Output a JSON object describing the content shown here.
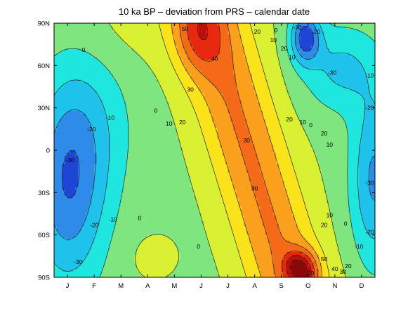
{
  "chart_data": {
    "type": "heatmap",
    "subtype": "filled-contour",
    "title": "10 ka BP – deviation from PRS – calendar date",
    "xlabel": "",
    "ylabel": "",
    "x_categories": [
      "J",
      "F",
      "M",
      "A",
      "M",
      "J",
      "J",
      "A",
      "S",
      "O",
      "N",
      "D"
    ],
    "x_range": [
      0.5,
      12.5
    ],
    "y_ticks": [
      "90N",
      "60N",
      "30N",
      "0",
      "30S",
      "60S",
      "90S"
    ],
    "y_range": [
      -90,
      90
    ],
    "contour_levels": [
      -30,
      -20,
      -10,
      0,
      10,
      20,
      30,
      40,
      50,
      60,
      70
    ],
    "colormap": "jet",
    "contour_labels": [
      {
        "text": "0",
        "month": 1.6,
        "lat": 71
      },
      {
        "text": "-10",
        "month": 2.6,
        "lat": 23
      },
      {
        "text": "-20",
        "month": 1.9,
        "lat": 15
      },
      {
        "text": "-30",
        "month": 1.1,
        "lat": -7
      },
      {
        "text": "-20",
        "month": 2.0,
        "lat": -53
      },
      {
        "text": "-10",
        "month": 2.7,
        "lat": -49
      },
      {
        "text": "-30",
        "month": 1.4,
        "lat": -79
      },
      {
        "text": "0",
        "month": 3.7,
        "lat": -48
      },
      {
        "text": "0",
        "month": 4.3,
        "lat": 28
      },
      {
        "text": "10",
        "month": 4.8,
        "lat": 19
      },
      {
        "text": "20",
        "month": 5.3,
        "lat": 20
      },
      {
        "text": "0",
        "month": 5.9,
        "lat": -68
      },
      {
        "text": "30",
        "month": 5.6,
        "lat": 43
      },
      {
        "text": "40",
        "month": 6.5,
        "lat": 65
      },
      {
        "text": "50",
        "month": 5.4,
        "lat": 86
      },
      {
        "text": "30",
        "month": 7.7,
        "lat": 7
      },
      {
        "text": "30",
        "month": 8.0,
        "lat": -27
      },
      {
        "text": "20",
        "month": 8.1,
        "lat": 84
      },
      {
        "text": "10",
        "month": 8.7,
        "lat": 78
      },
      {
        "text": "0",
        "month": 8.8,
        "lat": 85
      },
      {
        "text": "20",
        "month": 9.1,
        "lat": 72
      },
      {
        "text": "10",
        "month": 9.4,
        "lat": 66
      },
      {
        "text": "20",
        "month": 9.3,
        "lat": 22
      },
      {
        "text": "10",
        "month": 9.8,
        "lat": 20
      },
      {
        "text": "0",
        "month": 10.1,
        "lat": 18
      },
      {
        "text": "20",
        "month": 10.6,
        "lat": 12
      },
      {
        "text": "10",
        "month": 10.8,
        "lat": 4
      },
      {
        "text": "-30",
        "month": 9.6,
        "lat": 88
      },
      {
        "text": "-20",
        "month": 10.3,
        "lat": 84
      },
      {
        "text": "-30",
        "month": 10.9,
        "lat": 55
      },
      {
        "text": "-10",
        "month": 12.6,
        "lat": 53
      },
      {
        "text": "-20",
        "month": 12.6,
        "lat": 30
      },
      {
        "text": "-30",
        "month": 12.3,
        "lat": -23
      },
      {
        "text": "10",
        "month": 10.8,
        "lat": -46
      },
      {
        "text": "20",
        "month": 10.6,
        "lat": -53
      },
      {
        "text": "0",
        "month": 11.4,
        "lat": -52
      },
      {
        "text": "-20",
        "month": 12.3,
        "lat": -58
      },
      {
        "text": "-10",
        "month": 11.9,
        "lat": -68
      },
      {
        "text": "50",
        "month": 10.6,
        "lat": -77
      },
      {
        "text": "70",
        "month": 10.1,
        "lat": -87
      },
      {
        "text": "40",
        "month": 11.0,
        "lat": -84
      },
      {
        "text": "30",
        "month": 11.3,
        "lat": -86
      },
      {
        "text": "20",
        "month": 11.5,
        "lat": -82
      }
    ],
    "colors": {
      "-40": "#1f45d6",
      "-30": "#2f8be8",
      "-20": "#1fc2ea",
      "-10": "#1fe6df",
      "0": "#7fe57f",
      "10": "#d9f033",
      "20": "#fbe31c",
      "30": "#fba01d",
      "40": "#f46a18",
      "50": "#e8290f",
      "60": "#c20c0c",
      "70": "#8c0707"
    }
  }
}
